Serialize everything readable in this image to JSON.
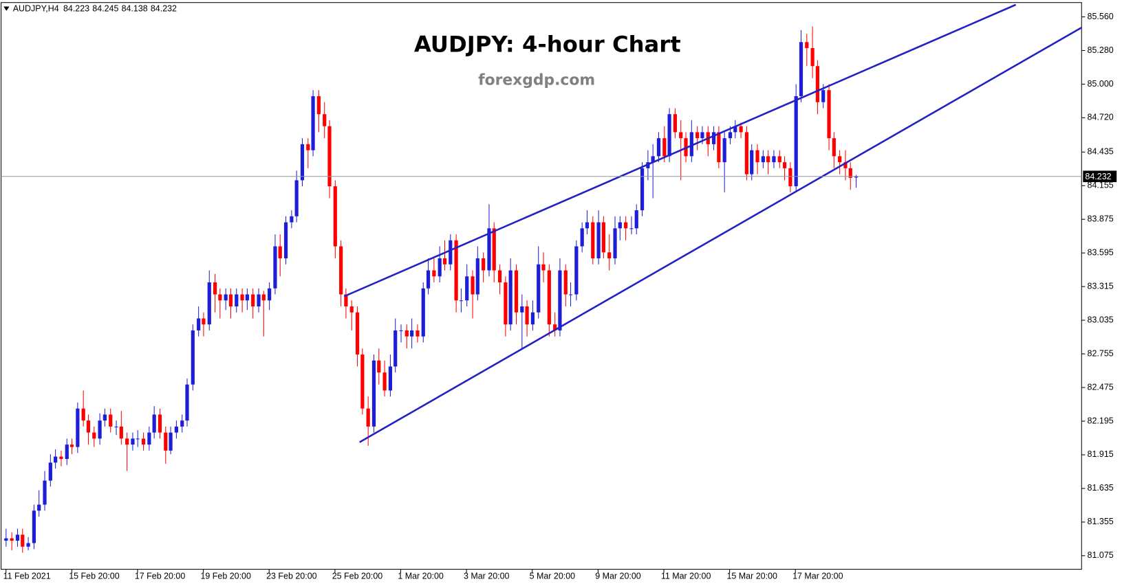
{
  "chart_data": {
    "type": "candlestick",
    "symbol": "AUDJPY,H4",
    "title": "AUDJPY: 4-hour Chart",
    "subtitle": "forexgdp.com",
    "up_color": "#1e1ed6",
    "down_color": "#ff0000",
    "channel_color": "#2222c4",
    "price_line_color": "#8c96a0",
    "ylim": [
      80.962,
      85.679
    ],
    "xlim": [
      -0.9,
      196.2
    ],
    "yticks": [
      {
        "value": 85.56,
        "label": "85.560"
      },
      {
        "value": 85.28,
        "label": "85.280"
      },
      {
        "value": 85.0,
        "label": "85.000"
      },
      {
        "value": 84.72,
        "label": "84.720"
      },
      84.435,
      84.155,
      83.875,
      83.595,
      83.315,
      83.035,
      82.755,
      82.475,
      82.195,
      81.915,
      81.635,
      81.355,
      81.075
    ],
    "xticks": [
      {
        "value": 0,
        "label": "11 Feb 2021"
      },
      {
        "value": 12,
        "label": "15 Feb 20:00"
      },
      {
        "value": 24,
        "label": "17 Feb 20:00"
      },
      {
        "value": 36,
        "label": "19 Feb 20:00"
      },
      {
        "value": 48,
        "label": "23 Feb 20:00"
      },
      {
        "value": 60,
        "label": "25 Feb 20:00"
      },
      {
        "value": 72,
        "label": "1 Mar 20:00"
      },
      {
        "value": 84,
        "label": "3 Mar 20:00"
      },
      {
        "value": 96,
        "label": "5 Mar 20:00"
      },
      {
        "value": 108,
        "label": "9 Mar 20:00"
      },
      {
        "value": 120,
        "label": "11 Mar 20:00"
      },
      {
        "value": 132,
        "label": "15 Mar 20:00"
      },
      {
        "value": 144,
        "label": "17 Mar 20:00"
      }
    ],
    "channel": [
      {
        "x": [
          61.7,
          184.2
        ],
        "y": [
          83.234,
          85.661
        ]
      },
      {
        "x": [
          64.5,
          196.2
        ],
        "y": [
          82.02,
          85.471
        ]
      }
    ],
    "ohlc": [
      [
        81.2,
        81.3,
        81.15,
        81.22
      ],
      [
        81.22,
        81.27,
        81.12,
        81.2
      ],
      [
        81.2,
        81.3,
        81.15,
        81.25
      ],
      [
        81.25,
        81.3,
        81.1,
        81.15
      ],
      [
        81.15,
        81.23,
        81.12,
        81.18
      ],
      [
        81.18,
        81.5,
        81.13,
        81.45
      ],
      [
        81.45,
        81.62,
        81.4,
        81.5
      ],
      [
        81.5,
        81.78,
        81.45,
        81.7
      ],
      [
        81.7,
        81.92,
        81.65,
        81.85
      ],
      [
        81.85,
        81.96,
        81.8,
        81.9
      ],
      [
        81.9,
        81.95,
        81.82,
        81.88
      ],
      [
        81.88,
        82.05,
        81.83,
        82.0
      ],
      [
        82.0,
        82.05,
        81.92,
        81.98
      ],
      [
        81.98,
        82.35,
        81.93,
        82.3
      ],
      [
        82.3,
        82.45,
        82.15,
        82.2
      ],
      [
        82.2,
        82.25,
        82.0,
        82.1
      ],
      [
        82.1,
        82.15,
        81.98,
        82.05
      ],
      [
        82.05,
        82.26,
        82.0,
        82.2
      ],
      [
        82.2,
        82.3,
        82.15,
        82.25
      ],
      [
        82.25,
        82.3,
        82.1,
        82.15
      ],
      [
        82.15,
        82.2,
        82.08,
        82.15
      ],
      [
        82.15,
        82.28,
        82.0,
        82.05
      ],
      [
        82.05,
        82.1,
        81.78,
        82.0
      ],
      [
        82.0,
        82.1,
        81.95,
        82.05
      ],
      [
        82.05,
        82.12,
        81.98,
        82.05
      ],
      [
        82.05,
        82.1,
        81.95,
        82.0
      ],
      [
        82.0,
        82.15,
        81.95,
        82.1
      ],
      [
        82.1,
        82.32,
        82.05,
        82.25
      ],
      [
        82.25,
        82.3,
        82.05,
        82.1
      ],
      [
        82.1,
        82.15,
        81.84,
        81.95
      ],
      [
        81.95,
        82.15,
        81.92,
        82.1
      ],
      [
        82.1,
        82.2,
        82.05,
        82.15
      ],
      [
        82.15,
        82.25,
        82.1,
        82.2
      ],
      [
        82.2,
        82.55,
        82.15,
        82.5
      ],
      [
        82.5,
        83.0,
        82.45,
        82.95
      ],
      [
        82.95,
        83.15,
        82.9,
        83.05
      ],
      [
        83.05,
        83.1,
        82.9,
        83.0
      ],
      [
        83.0,
        83.45,
        82.95,
        83.35
      ],
      [
        83.35,
        83.42,
        83.1,
        83.25
      ],
      [
        83.25,
        83.3,
        83.05,
        83.2
      ],
      [
        83.2,
        83.3,
        83.12,
        83.25
      ],
      [
        83.25,
        83.3,
        83.05,
        83.15
      ],
      [
        83.15,
        83.3,
        83.1,
        83.25
      ],
      [
        83.25,
        83.3,
        83.1,
        83.2
      ],
      [
        83.2,
        83.3,
        83.12,
        83.25
      ],
      [
        83.25,
        83.3,
        83.05,
        83.15
      ],
      [
        83.15,
        83.3,
        83.1,
        83.25
      ],
      [
        83.25,
        83.28,
        82.9,
        83.2
      ],
      [
        83.2,
        83.35,
        83.12,
        83.3
      ],
      [
        83.3,
        83.75,
        83.25,
        83.65
      ],
      [
        83.65,
        83.75,
        83.4,
        83.55
      ],
      [
        83.55,
        83.9,
        83.5,
        83.85
      ],
      [
        83.85,
        83.95,
        83.8,
        83.9
      ],
      [
        83.9,
        84.28,
        83.85,
        84.2
      ],
      [
        84.2,
        84.55,
        84.15,
        84.5
      ],
      [
        84.5,
        84.55,
        84.3,
        84.45
      ],
      [
        84.45,
        84.95,
        84.4,
        84.9
      ],
      [
        84.9,
        84.95,
        84.6,
        84.75
      ],
      [
        84.75,
        84.85,
        84.55,
        84.65
      ],
      [
        84.65,
        84.7,
        84.05,
        84.15
      ],
      [
        84.15,
        84.2,
        83.55,
        83.65
      ],
      [
        83.65,
        83.7,
        83.15,
        83.25
      ],
      [
        83.25,
        83.3,
        83.05,
        83.15
      ],
      [
        83.15,
        83.2,
        82.95,
        83.1
      ],
      [
        83.1,
        83.15,
        82.65,
        82.75
      ],
      [
        82.75,
        82.8,
        82.25,
        82.3
      ],
      [
        82.3,
        82.4,
        81.99,
        82.15
      ],
      [
        82.15,
        82.75,
        82.1,
        82.7
      ],
      [
        82.7,
        82.8,
        82.5,
        82.6
      ],
      [
        82.6,
        82.7,
        82.4,
        82.45
      ],
      [
        82.45,
        82.75,
        82.4,
        82.65
      ],
      [
        82.65,
        83.05,
        82.6,
        82.95
      ],
      [
        82.95,
        83.0,
        82.85,
        82.95
      ],
      [
        82.95,
        83.0,
        82.8,
        82.9
      ],
      [
        82.9,
        83.05,
        82.8,
        82.95
      ],
      [
        82.95,
        83.0,
        82.85,
        82.9
      ],
      [
        82.9,
        83.35,
        82.85,
        83.3
      ],
      [
        83.3,
        83.55,
        83.25,
        83.45
      ],
      [
        83.45,
        83.55,
        83.35,
        83.4
      ],
      [
        83.4,
        83.65,
        83.35,
        83.55
      ],
      [
        83.55,
        83.7,
        83.45,
        83.5
      ],
      [
        83.5,
        83.75,
        83.45,
        83.7
      ],
      [
        83.7,
        83.75,
        83.1,
        83.2
      ],
      [
        83.2,
        83.3,
        83.1,
        83.2
      ],
      [
        83.2,
        83.5,
        83.15,
        83.4
      ],
      [
        83.4,
        83.45,
        83.05,
        83.25
      ],
      [
        83.25,
        83.65,
        83.2,
        83.55
      ],
      [
        83.55,
        83.6,
        83.35,
        83.45
      ],
      [
        83.45,
        84.0,
        83.4,
        83.8
      ],
      [
        83.8,
        83.85,
        83.35,
        83.45
      ],
      [
        83.45,
        83.5,
        83.25,
        83.35
      ],
      [
        83.35,
        83.4,
        82.9,
        83.0
      ],
      [
        83.0,
        83.55,
        82.95,
        83.45
      ],
      [
        83.45,
        83.5,
        83.0,
        83.1
      ],
      [
        83.1,
        83.25,
        82.8,
        83.15
      ],
      [
        83.15,
        83.2,
        82.9,
        83.0
      ],
      [
        83.0,
        83.2,
        82.95,
        83.1
      ],
      [
        83.1,
        83.65,
        83.05,
        83.5
      ],
      [
        83.5,
        83.6,
        83.35,
        83.45
      ],
      [
        83.45,
        83.5,
        82.9,
        83.0
      ],
      [
        83.0,
        83.1,
        82.9,
        82.95
      ],
      [
        82.95,
        83.55,
        82.9,
        83.45
      ],
      [
        83.45,
        83.5,
        83.15,
        83.25
      ],
      [
        83.25,
        83.35,
        83.15,
        83.25
      ],
      [
        83.25,
        83.7,
        83.2,
        83.65
      ],
      [
        83.65,
        83.85,
        83.6,
        83.8
      ],
      [
        83.8,
        83.95,
        83.75,
        83.85
      ],
      [
        83.85,
        83.9,
        83.5,
        83.55
      ],
      [
        83.55,
        83.95,
        83.5,
        83.85
      ],
      [
        83.85,
        83.9,
        83.55,
        83.6
      ],
      [
        83.6,
        83.75,
        83.45,
        83.55
      ],
      [
        83.55,
        83.9,
        83.5,
        83.8
      ],
      [
        83.8,
        83.9,
        83.7,
        83.85
      ],
      [
        83.85,
        83.9,
        83.7,
        83.8
      ],
      [
        83.8,
        83.9,
        83.75,
        83.8
      ],
      [
        83.8,
        84.0,
        83.75,
        83.95
      ],
      [
        83.95,
        84.35,
        83.9,
        84.3
      ],
      [
        84.3,
        84.45,
        84.2,
        84.35
      ],
      [
        84.35,
        84.5,
        84.05,
        84.4
      ],
      [
        84.4,
        84.6,
        84.35,
        84.55
      ],
      [
        84.55,
        84.65,
        84.35,
        84.4
      ],
      [
        84.4,
        84.8,
        84.35,
        84.75
      ],
      [
        84.75,
        84.8,
        84.55,
        84.6
      ],
      [
        84.6,
        84.7,
        84.2,
        84.55
      ],
      [
        84.55,
        84.6,
        84.35,
        84.4
      ],
      [
        84.4,
        84.7,
        84.35,
        84.6
      ],
      [
        84.6,
        84.65,
        84.45,
        84.55
      ],
      [
        84.55,
        84.65,
        84.5,
        84.6
      ],
      [
        84.6,
        84.65,
        84.4,
        84.5
      ],
      [
        84.5,
        84.65,
        84.45,
        84.6
      ],
      [
        84.6,
        84.65,
        84.3,
        84.35
      ],
      [
        84.35,
        84.6,
        84.1,
        84.55
      ],
      [
        84.55,
        84.65,
        84.5,
        84.6
      ],
      [
        84.6,
        84.7,
        84.55,
        84.65
      ],
      [
        84.65,
        84.68,
        84.55,
        84.6
      ],
      [
        84.6,
        84.65,
        84.2,
        84.25
      ],
      [
        84.25,
        84.5,
        84.2,
        84.45
      ],
      [
        84.45,
        84.5,
        84.25,
        84.35
      ],
      [
        84.35,
        84.45,
        84.3,
        84.4
      ],
      [
        84.4,
        84.45,
        84.25,
        84.35
      ],
      [
        84.35,
        84.45,
        84.3,
        84.4
      ],
      [
        84.4,
        84.45,
        84.3,
        84.35
      ],
      [
        84.35,
        84.4,
        84.2,
        84.3
      ],
      [
        84.3,
        84.35,
        84.1,
        84.15
      ],
      [
        84.15,
        85.0,
        84.1,
        84.9
      ],
      [
        84.9,
        85.45,
        84.85,
        85.35
      ],
      [
        85.35,
        85.42,
        85.15,
        85.3
      ],
      [
        85.3,
        85.48,
        85.05,
        85.15
      ],
      [
        85.15,
        85.2,
        84.75,
        84.85
      ],
      [
        84.85,
        85.0,
        84.8,
        84.95
      ],
      [
        84.95,
        85.0,
        84.45,
        84.55
      ],
      [
        84.55,
        84.6,
        84.3,
        84.4
      ],
      [
        84.4,
        84.45,
        84.25,
        84.35
      ],
      [
        84.35,
        84.45,
        84.2,
        84.3
      ],
      [
        84.3,
        84.35,
        84.12,
        84.22
      ],
      [
        84.223,
        84.245,
        84.138,
        84.232
      ]
    ]
  }
}
